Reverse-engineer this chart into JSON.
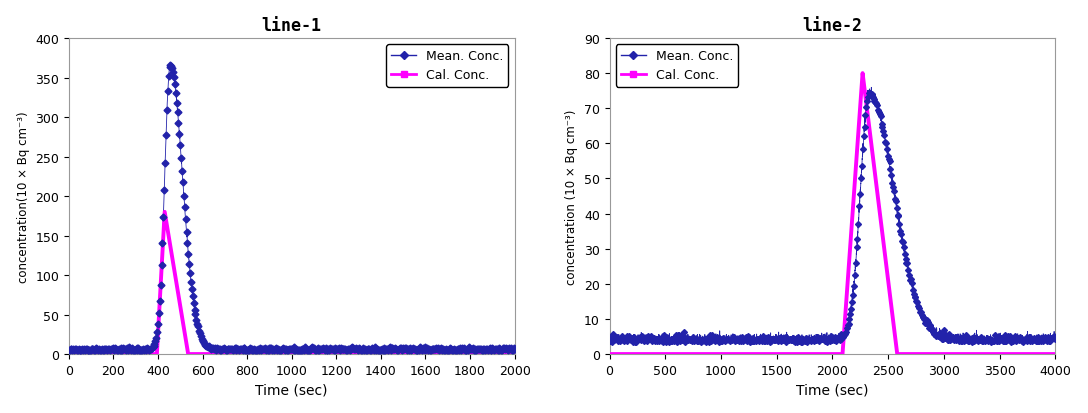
{
  "plot1": {
    "title": "line-1",
    "xlabel": "Time (sec)",
    "ylabel": "concentration(10 × Bq cm⁻³)",
    "xlim": [
      0,
      2000
    ],
    "ylim": [
      0,
      400
    ],
    "xticks": [
      0,
      200,
      400,
      600,
      800,
      1000,
      1200,
      1400,
      1600,
      1800,
      2000
    ],
    "yticks": [
      0,
      50,
      100,
      150,
      200,
      250,
      300,
      350,
      400
    ],
    "mean_peak_time": 455,
    "mean_peak_val": 360,
    "mean_sigma_rise": 25,
    "mean_sigma_fall": 55,
    "mean_rise_start": 360,
    "mean_bg": 5.0,
    "mean_bg_noise": 1.5,
    "cal_peak_time": 430,
    "cal_peak_val": 180,
    "cal_rise_start": 395,
    "cal_fall_end": 535,
    "legend_loc": "upper right",
    "mean_color": "#2222aa",
    "cal_color": "#ff00ff",
    "mean_label": "Mean. Conc.",
    "cal_label": "Cal. Conc.",
    "marker_every": 8,
    "marker_size": 3.5
  },
  "plot2": {
    "title": "line-2",
    "xlabel": "Time (sec)",
    "ylabel": "concentration (10 × Bq cm⁻³)",
    "xlim": [
      0,
      4000
    ],
    "ylim": [
      0,
      90
    ],
    "xticks": [
      0,
      500,
      1000,
      1500,
      2000,
      2500,
      3000,
      3500,
      4000
    ],
    "yticks": [
      0,
      10,
      20,
      30,
      40,
      50,
      60,
      70,
      80,
      90
    ],
    "mean_peak_time": 2330,
    "mean_peak_val": 70,
    "mean_sigma_rise": 80,
    "mean_sigma_fall": 220,
    "mean_rise_start": 2050,
    "mean_bg": 3.5,
    "mean_bg_noise": 0.8,
    "cal_peak_time": 2270,
    "cal_peak_val": 80,
    "cal_rise_start": 2090,
    "cal_fall_end": 2580,
    "legend_loc": "upper left",
    "mean_color": "#2222aa",
    "cal_color": "#ff00ff",
    "mean_label": "Mean. Conc.",
    "cal_label": "Cal. Conc.",
    "marker_every": 16,
    "marker_size": 3.0
  }
}
